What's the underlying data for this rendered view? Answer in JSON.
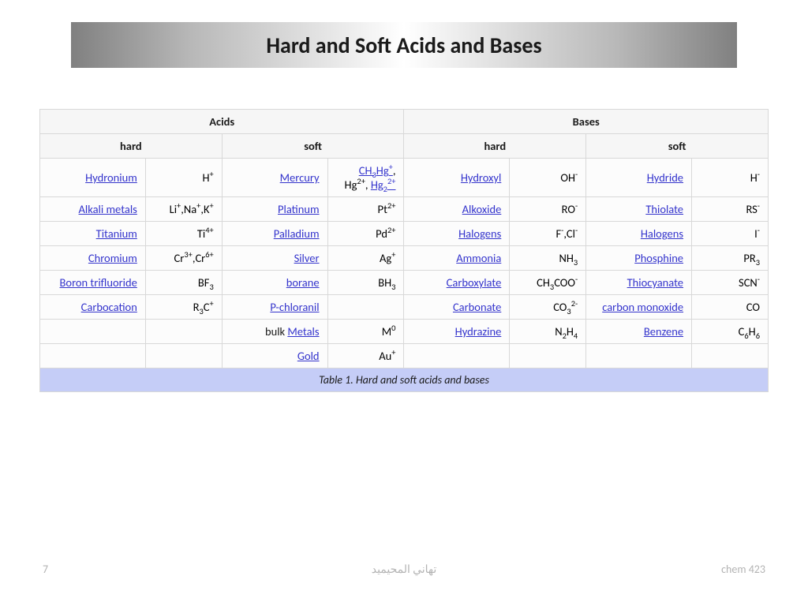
{
  "slide": {
    "title": "Hard and Soft Acids and Bases",
    "title_fontsize": 28,
    "title_bar_gradient": [
      "#808080",
      "#b8b8b8",
      "#ffffff",
      "#b8b8b8",
      "#808080"
    ],
    "background": "#ffffff"
  },
  "table": {
    "type": "table",
    "caption": "Table 1. Hard and soft acids and bases",
    "caption_bg": "#c5cdf7",
    "border_color": "#d8d8d8",
    "cell_bg": "#fcfcfc",
    "header_bg": "#f6f6f6",
    "link_color": "#3333cc",
    "font_size": 14.5,
    "headers": {
      "top": {
        "acids": "Acids",
        "bases": "Bases"
      },
      "sub": {
        "hard": "hard",
        "soft": "soft"
      }
    },
    "rows": [
      {
        "acid_hard": {
          "name": "Hydronium",
          "link": true,
          "formula_html": "H<sup>+</sup>"
        },
        "acid_soft": {
          "name": "Mercury",
          "link": true,
          "formula_html": "<a>CH<sub>3</sub>Hg<sup>+</sup></a>, Hg<sup>2+</sup>, <a>Hg<sub>2</sub><sup>2+</sup></a>"
        },
        "base_hard": {
          "name": "Hydroxyl",
          "link": true,
          "formula_html": "OH<sup>-</sup>"
        },
        "base_soft": {
          "name": "Hydride",
          "link": true,
          "formula_html": "H<sup>-</sup>"
        }
      },
      {
        "acid_hard": {
          "name": "Alkali metals",
          "link": true,
          "formula_html": "Li<sup>+</sup>,Na<sup>+</sup>,K<sup>+</sup>"
        },
        "acid_soft": {
          "name": "Platinum",
          "link": true,
          "formula_html": "Pt<sup>2+</sup>"
        },
        "base_hard": {
          "name": "Alkoxide",
          "link": true,
          "formula_html": "RO<sup>-</sup>"
        },
        "base_soft": {
          "name": "Thiolate",
          "link": true,
          "formula_html": "RS<sup>-</sup>"
        }
      },
      {
        "acid_hard": {
          "name": "Titanium",
          "link": true,
          "formula_html": "Ti<sup>4+</sup>"
        },
        "acid_soft": {
          "name": "Palladium",
          "link": true,
          "formula_html": "Pd<sup>2+</sup>"
        },
        "base_hard": {
          "name": "Halogens",
          "link": true,
          "formula_html": "F<sup>-</sup>,Cl<sup>-</sup>"
        },
        "base_soft": {
          "name": "Halogens",
          "link": true,
          "formula_html": "I<sup>-</sup>"
        }
      },
      {
        "acid_hard": {
          "name": "Chromium",
          "link": true,
          "formula_html": "Cr<sup>3+</sup>,Cr<sup>6+</sup>"
        },
        "acid_soft": {
          "name": "Silver",
          "link": true,
          "formula_html": "Ag<sup>+</sup>"
        },
        "base_hard": {
          "name": "Ammonia",
          "link": true,
          "formula_html": "NH<sub>3</sub>"
        },
        "base_soft": {
          "name": "Phosphine",
          "link": true,
          "formula_html": "PR<sub>3</sub>"
        }
      },
      {
        "acid_hard": {
          "name": "Boron trifluoride",
          "link": true,
          "formula_html": "BF<sub>3</sub>"
        },
        "acid_soft": {
          "name": "borane",
          "link": true,
          "formula_html": "BH<sub>3</sub>"
        },
        "base_hard": {
          "name": "Carboxylate",
          "link": true,
          "formula_html": "CH<sub>3</sub>COO<sup>-</sup>"
        },
        "base_soft": {
          "name": "Thiocyanate",
          "link": true,
          "formula_html": "SCN<sup>-</sup>"
        }
      },
      {
        "acid_hard": {
          "name": "Carbocation",
          "link": true,
          "formula_html": "R<sub>3</sub>C<sup>+</sup>"
        },
        "acid_soft": {
          "name": "P-chloranil",
          "link": true,
          "formula_html": ""
        },
        "base_hard": {
          "name": "Carbonate",
          "link": true,
          "formula_html": "CO<sub>3</sub><sup>2-</sup>"
        },
        "base_soft": {
          "name": "carbon monoxide",
          "link": true,
          "formula_html": "CO"
        }
      },
      {
        "acid_hard": {
          "name": "",
          "link": false,
          "formula_html": ""
        },
        "acid_soft": {
          "name_html": "<span class='plain'>bulk </span><a>Metals</a>",
          "formula_html": "M<sup>0</sup>"
        },
        "base_hard": {
          "name": "Hydrazine",
          "link": true,
          "formula_html": "N<sub>2</sub>H<sub>4</sub>"
        },
        "base_soft": {
          "name": "Benzene",
          "link": true,
          "formula_html": "C<sub>6</sub>H<sub>6</sub>"
        }
      },
      {
        "acid_hard": {
          "name": "",
          "link": false,
          "formula_html": ""
        },
        "acid_soft": {
          "name": "Gold",
          "link": true,
          "formula_html": "Au<sup>+</sup>"
        },
        "base_hard": {
          "name": "",
          "link": false,
          "formula_html": ""
        },
        "base_soft": {
          "name": "",
          "link": false,
          "formula_html": ""
        }
      }
    ]
  },
  "footer": {
    "page_number": "7",
    "author": "تهاني المحيميد",
    "course": "chem 423",
    "color": "#b3b3b3",
    "fontsize": 14
  }
}
